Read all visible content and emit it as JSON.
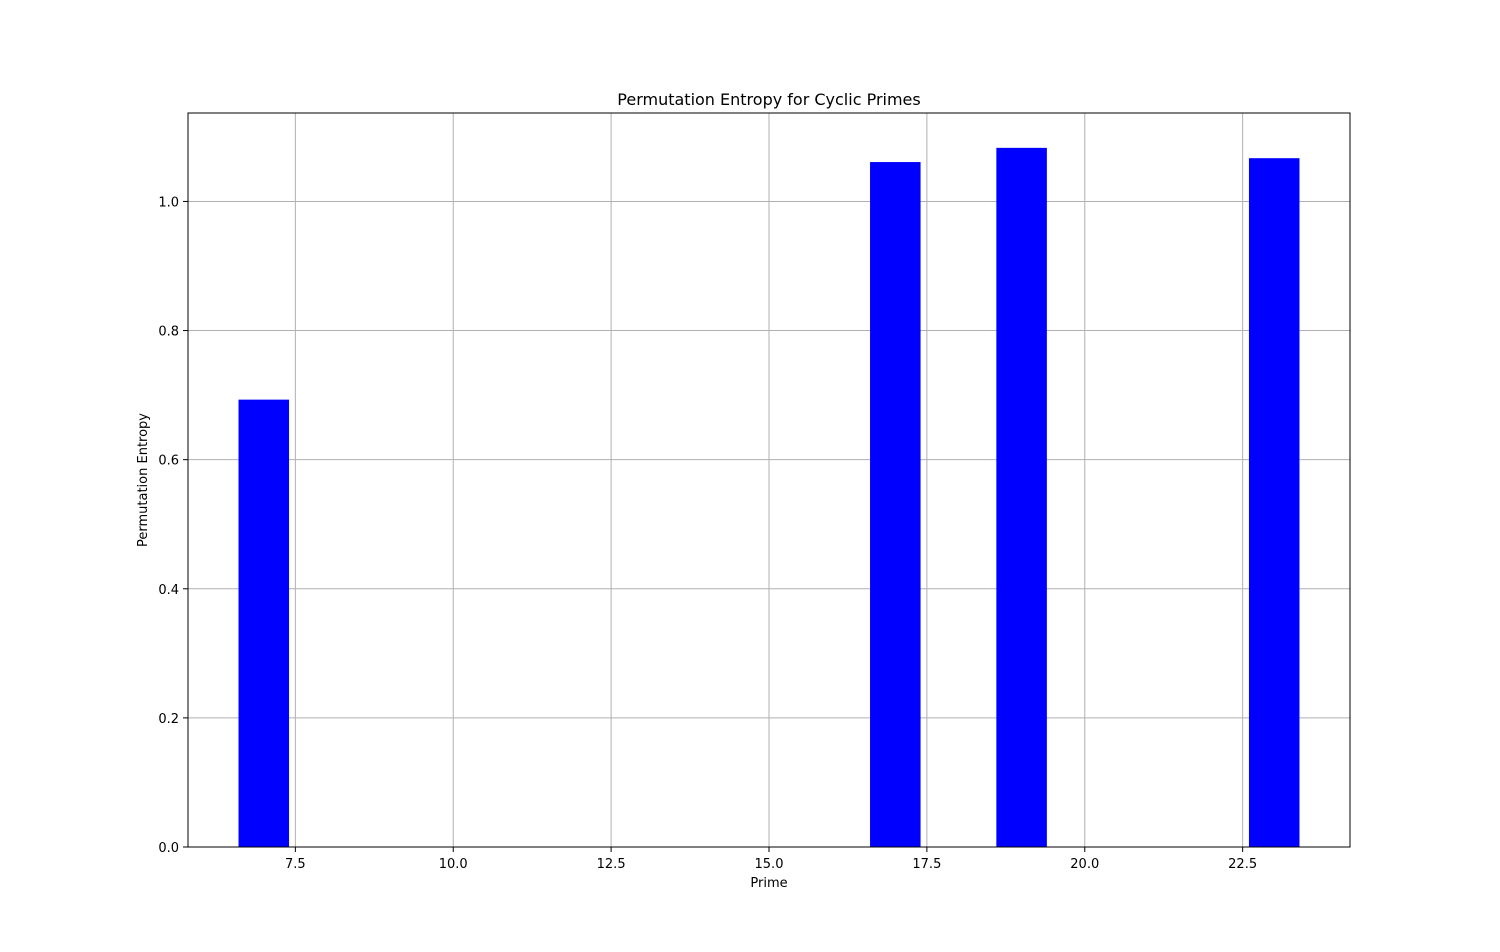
{
  "chart_data": {
    "type": "bar",
    "title": "Permutation Entropy for Cyclic Primes",
    "xlabel": "Prime",
    "ylabel": "Permutation Entropy",
    "x": [
      7,
      17,
      19,
      23
    ],
    "values": [
      0.693,
      1.061,
      1.083,
      1.067
    ],
    "bar_width": 0.8,
    "xlim": [
      5.8,
      24.2
    ],
    "ylim": [
      0,
      1.137
    ],
    "xticks": [
      7.5,
      10.0,
      12.5,
      15.0,
      17.5,
      20.0,
      22.5
    ],
    "xtick_labels": [
      "7.5",
      "10.0",
      "12.5",
      "15.0",
      "17.5",
      "20.0",
      "22.5"
    ],
    "yticks": [
      0.0,
      0.2,
      0.4,
      0.6,
      0.8,
      1.0
    ],
    "ytick_labels": [
      "0.0",
      "0.2",
      "0.4",
      "0.6",
      "0.8",
      "1.0"
    ],
    "grid": true,
    "bar_color": "#0000ff",
    "grid_color": "#b0b0b0"
  }
}
